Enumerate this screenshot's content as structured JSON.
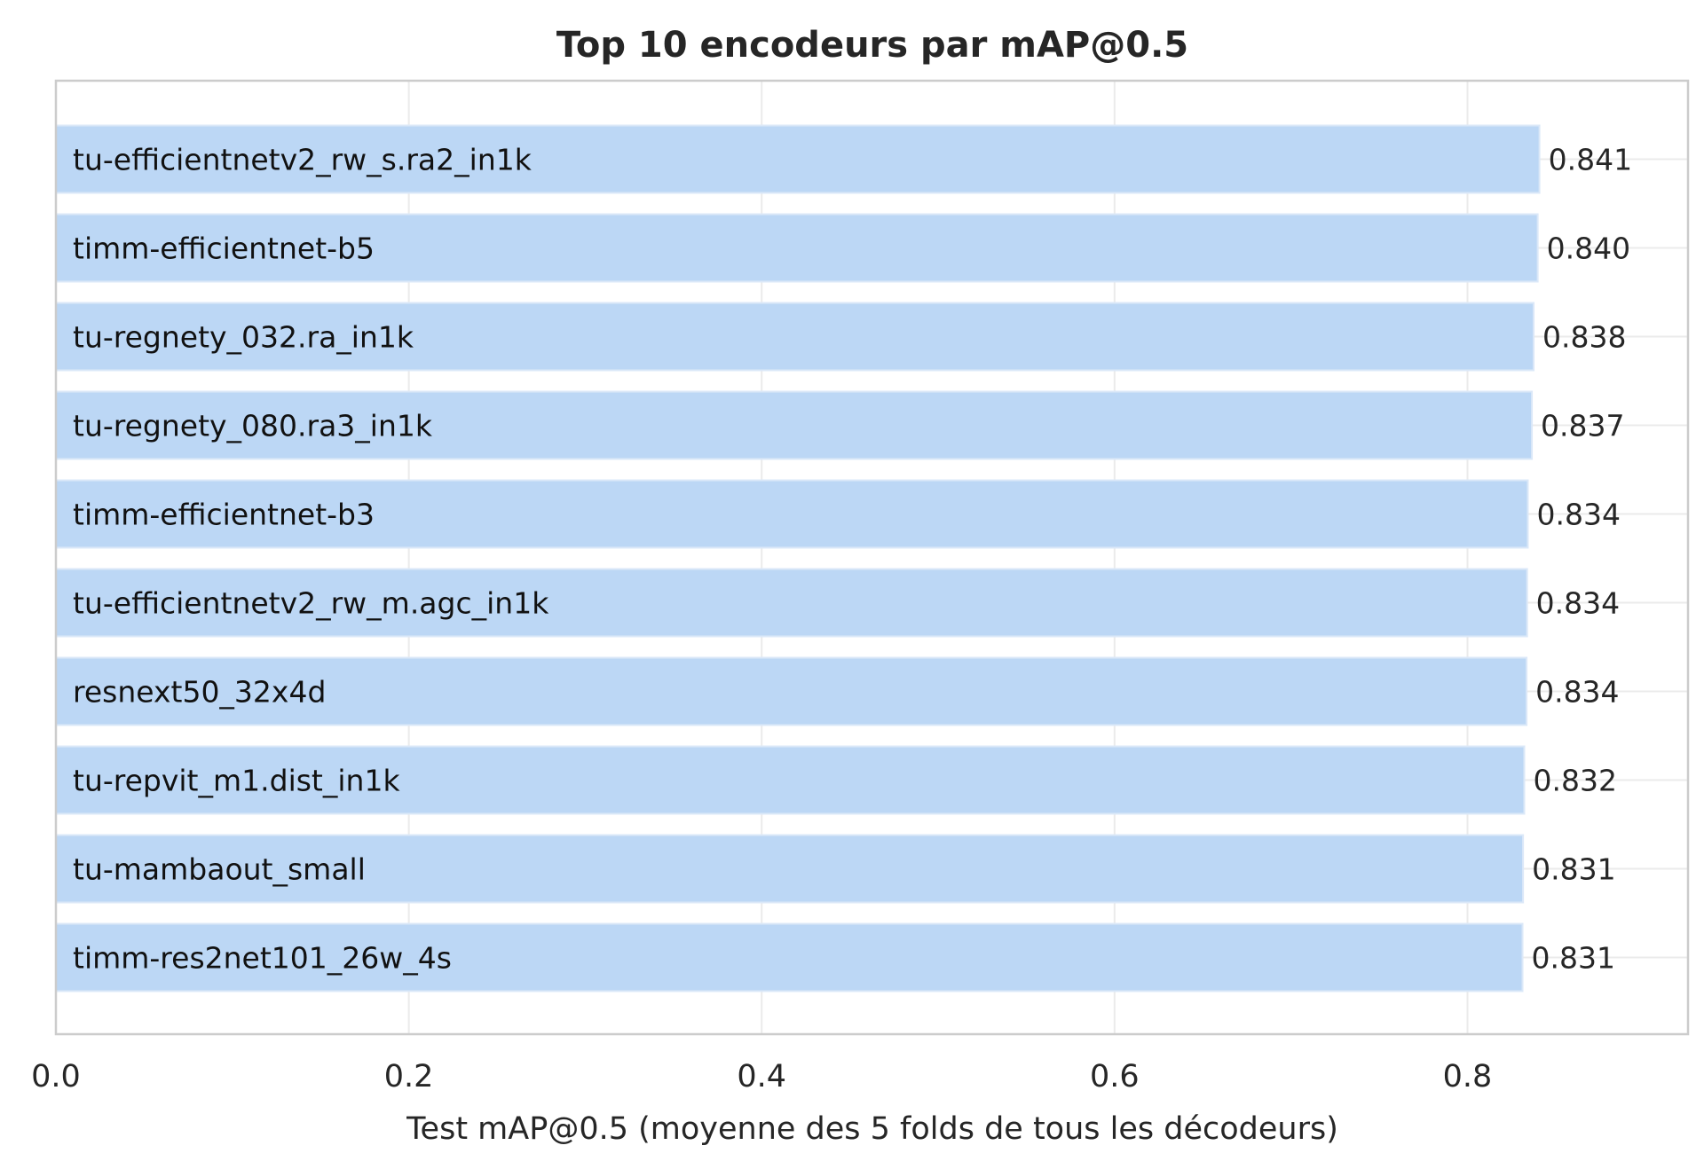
{
  "chart_data": {
    "type": "bar",
    "orientation": "horizontal",
    "title": "Top 10 encodeurs par mAP@0.5",
    "xlabel": "Test mAP@0.5 (moyenne des 5 folds de tous les décodeurs)",
    "ylabel": "",
    "xlim": [
      0,
      0.925
    ],
    "xticks": [
      0.0,
      0.2,
      0.4,
      0.6,
      0.8
    ],
    "xtick_labels": [
      "0.0",
      "0.2",
      "0.4",
      "0.6",
      "0.8"
    ],
    "grid": true,
    "bar_color": "#bcd7f5",
    "categories": [
      "tu-efficientnetv2_rw_s.ra2_in1k",
      "timm-efficientnet-b5",
      "tu-regnety_032.ra_in1k",
      "tu-regnety_080.ra3_in1k",
      "timm-efficientnet-b3",
      "tu-efficientnetv2_rw_m.agc_in1k",
      "resnext50_32x4d",
      "tu-repvit_m1.dist_in1k",
      "tu-mambaout_small",
      "timm-res2net101_26w_4s"
    ],
    "values": [
      0.8408,
      0.8398,
      0.8375,
      0.8365,
      0.8342,
      0.8338,
      0.8335,
      0.8322,
      0.8315,
      0.8312
    ],
    "value_labels": [
      "0.841",
      "0.840",
      "0.838",
      "0.837",
      "0.834",
      "0.834",
      "0.834",
      "0.832",
      "0.831",
      "0.831"
    ]
  }
}
